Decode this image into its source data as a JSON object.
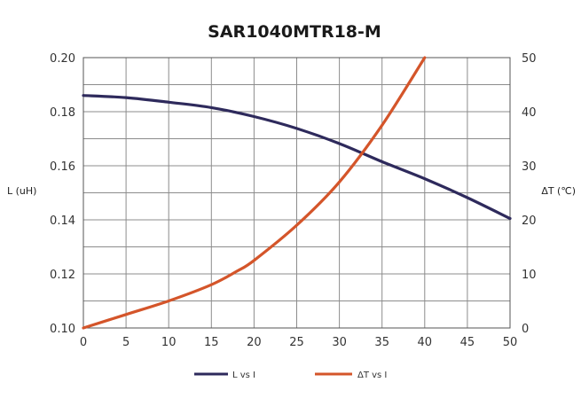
{
  "chart_data": {
    "type": "line",
    "title": "SAR1040MTR18-M",
    "xlabel": "",
    "ylabel": "L (uH)",
    "y2label": "ΔT (℃)",
    "xlim": [
      0,
      50
    ],
    "ylim": [
      0.1,
      0.2
    ],
    "y2lim": [
      0,
      50
    ],
    "x_ticks": [
      "0",
      "5",
      "10",
      "15",
      "20",
      "25",
      "30",
      "35",
      "40",
      "45",
      "50"
    ],
    "y_ticks": [
      "0.20",
      "0.18",
      "0.16",
      "0.14",
      "0.12",
      "0.10"
    ],
    "y2_ticks": [
      "50",
      "40",
      "30",
      "20",
      "10",
      "0"
    ],
    "grid": true,
    "legend_position": "bottom",
    "series": [
      {
        "name": "L vs I",
        "axis": "left",
        "color": "#2e2a5c",
        "x": [
          0,
          5,
          10,
          15,
          20,
          25,
          30,
          35,
          40,
          45,
          50
        ],
        "values": [
          0.186,
          0.1852,
          0.1835,
          0.1815,
          0.1782,
          0.1738,
          0.1682,
          0.1615,
          0.1552,
          0.1482,
          0.1405
        ]
      },
      {
        "name": "ΔT vs I",
        "axis": "right",
        "color": "#d4552a",
        "x": [
          0,
          5,
          10,
          15,
          18,
          20,
          25,
          30,
          35,
          40
        ],
        "values": [
          0,
          2.5,
          5,
          8,
          10.5,
          12.5,
          19,
          27,
          37.5,
          50
        ]
      }
    ]
  }
}
